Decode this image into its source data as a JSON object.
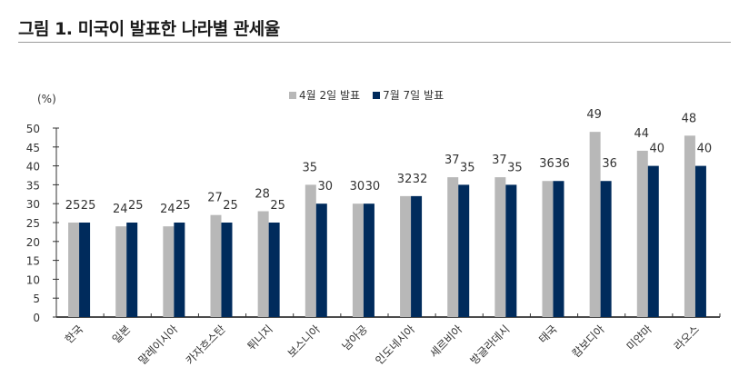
{
  "header": {
    "title": "그림 1. 미국이 발표한 나라별 관세율"
  },
  "chart_data": {
    "type": "bar",
    "title": "그림 1. 미국이 발표한 나라별 관세율",
    "xlabel": "",
    "ylabel": "(%)",
    "ylim": [
      0,
      50
    ],
    "yticks": [
      0,
      5,
      10,
      15,
      20,
      25,
      30,
      35,
      40,
      45,
      50
    ],
    "grid": false,
    "legend_position": "top",
    "categories": [
      "한국",
      "일본",
      "말레이시아",
      "카자흐스탄",
      "튀니지",
      "보스니아",
      "남아공",
      "인도네시아",
      "세르비아",
      "방글라데시",
      "태국",
      "캄보디아",
      "미얀마",
      "라오스"
    ],
    "series": [
      {
        "name": "4월 2일 발표",
        "color": "#b8b8b8",
        "values": [
          25,
          24,
          24,
          27,
          28,
          35,
          30,
          32,
          37,
          37,
          36,
          49,
          44,
          48
        ]
      },
      {
        "name": "7월 7일 발표",
        "color": "#002b5c",
        "values": [
          25,
          25,
          25,
          25,
          25,
          30,
          30,
          32,
          35,
          35,
          36,
          36,
          40,
          40
        ]
      }
    ]
  }
}
